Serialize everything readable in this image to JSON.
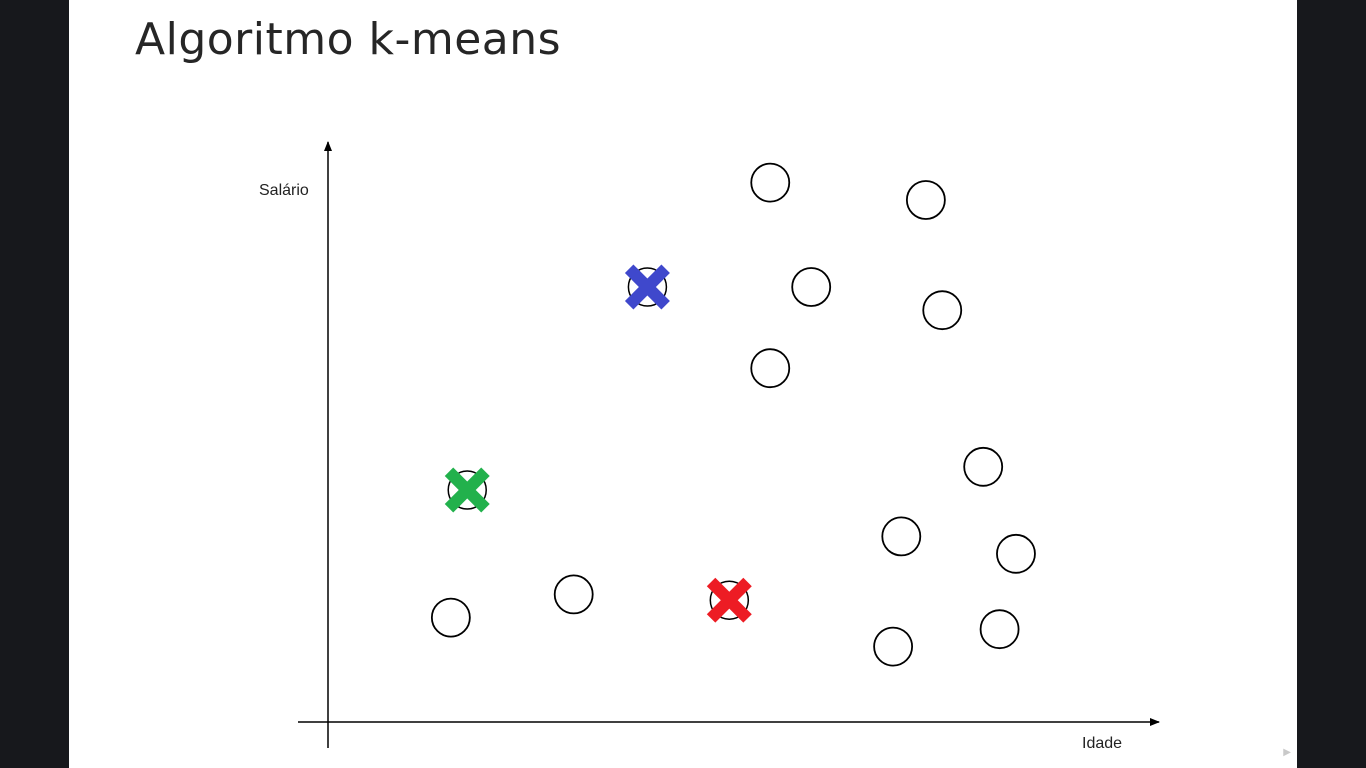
{
  "slide": {
    "title": "Algoritmo k-means"
  },
  "chart_data": {
    "type": "scatter",
    "title": "Algoritmo k-means",
    "xlabel": "Idade",
    "ylabel": "Salário",
    "grid": false,
    "legend": "none",
    "xlim": [
      0,
      100
    ],
    "ylim": [
      0,
      100
    ],
    "series": [
      {
        "marker": "circle",
        "color": "#000000",
        "points": [
          {
            "x": 54,
            "y": 93
          },
          {
            "x": 73,
            "y": 90
          },
          {
            "x": 59,
            "y": 75
          },
          {
            "x": 75,
            "y": 71
          },
          {
            "x": 54,
            "y": 61
          },
          {
            "x": 80,
            "y": 44
          },
          {
            "x": 70,
            "y": 32
          },
          {
            "x": 84,
            "y": 29
          },
          {
            "x": 15,
            "y": 18
          },
          {
            "x": 30,
            "y": 22
          },
          {
            "x": 69,
            "y": 13
          },
          {
            "x": 82,
            "y": 16
          }
        ]
      },
      {
        "marker": "cross",
        "points": [
          {
            "x": 39,
            "y": 75,
            "color": "#3f48cc"
          },
          {
            "x": 17,
            "y": 40,
            "color": "#22b14c"
          },
          {
            "x": 49,
            "y": 21,
            "color": "#ed1c24"
          }
        ]
      }
    ]
  }
}
